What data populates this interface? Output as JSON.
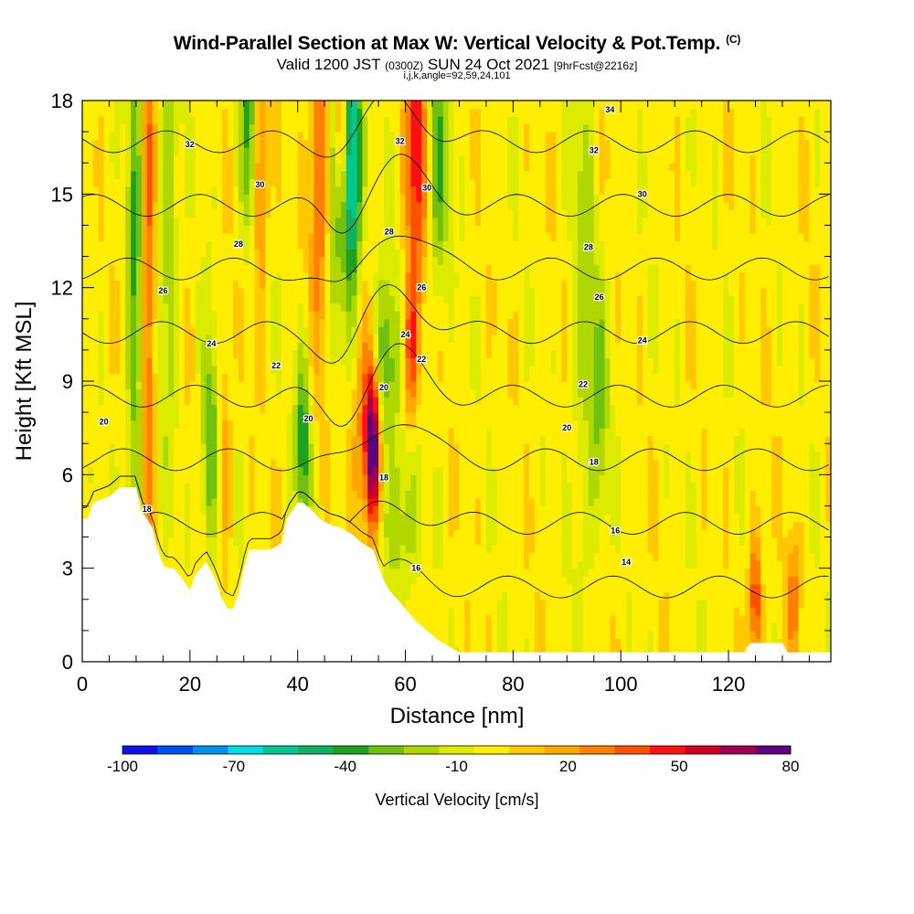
{
  "header": {
    "title": "Wind-Parallel Section at Max W: Vertical Velocity & Pot.Temp.",
    "title_unit": "(C)",
    "valid_prefix": "Valid 1200 JST",
    "valid_utc": "(0300Z)",
    "valid_date": "SUN 24 Oct 2021",
    "forecast": "[9hrFcst@2216z]",
    "indices": "i,j,k,angle=92,59,24,101"
  },
  "chart_data": {
    "type": "heatmap",
    "xlabel": "Distance [nm]",
    "ylabel": "Height [Kft MSL]",
    "xlim": [
      0,
      139
    ],
    "ylim": [
      0,
      18
    ],
    "x_ticks": [
      0,
      20,
      40,
      60,
      80,
      100,
      120
    ],
    "y_ticks": [
      0,
      3,
      6,
      9,
      12,
      15,
      18
    ],
    "colorbar": {
      "label": "Vertical Velocity [cm/s]",
      "tick_labels": [
        "-100",
        "-70",
        "-40",
        "-10",
        "20",
        "50",
        "80"
      ],
      "tick_values": [
        -100,
        -70,
        -40,
        -10,
        20,
        50,
        80
      ],
      "bins": [
        -100,
        -90,
        -80,
        -70,
        -60,
        -50,
        -40,
        -30,
        -20,
        -10,
        0,
        10,
        20,
        30,
        40,
        50,
        60,
        70,
        80
      ],
      "colors": [
        "#1010e8",
        "#0050f0",
        "#0090f0",
        "#00dce8",
        "#00c890",
        "#10b060",
        "#20a020",
        "#70c010",
        "#b0d800",
        "#dceb00",
        "#ffee00",
        "#ffc800",
        "#ffa800",
        "#ff8000",
        "#ff5000",
        "#ff1010",
        "#d00020",
        "#a00050",
        "#600080"
      ]
    },
    "background_value": 5,
    "velocity_features": [
      {
        "x": 10,
        "z": 12,
        "value": -40,
        "sx": 1.2,
        "sz": 7
      },
      {
        "x": 12,
        "z": 12,
        "value": 45,
        "sx": 1.0,
        "sz": 8
      },
      {
        "x": 16,
        "z": 14,
        "value": -25,
        "sx": 1.2,
        "sz": 5
      },
      {
        "x": 24,
        "z": 7,
        "value": -40,
        "sx": 1.3,
        "sz": 2.5
      },
      {
        "x": 26,
        "z": 7,
        "value": 30,
        "sx": 1.0,
        "sz": 2.5
      },
      {
        "x": 31,
        "z": 17,
        "value": -40,
        "sx": 1.2,
        "sz": 2.5
      },
      {
        "x": 33,
        "z": 16,
        "value": 40,
        "sx": 1.0,
        "sz": 3
      },
      {
        "x": 41,
        "z": 7,
        "value": -45,
        "sx": 1.0,
        "sz": 2
      },
      {
        "x": 44,
        "z": 16,
        "value": 40,
        "sx": 1.2,
        "sz": 4
      },
      {
        "x": 47,
        "z": 16,
        "value": -35,
        "sx": 1.0,
        "sz": 3.5
      },
      {
        "x": 50,
        "z": 16,
        "value": -80,
        "sx": 1.3,
        "sz": 3
      },
      {
        "x": 48,
        "z": 17,
        "value": 55,
        "sx": 0.9,
        "sz": 2
      },
      {
        "x": 54,
        "z": 7,
        "value": 70,
        "sx": 0.9,
        "sz": 1.8
      },
      {
        "x": 53,
        "z": 7.5,
        "value": 40,
        "sx": 2.0,
        "sz": 2.5
      },
      {
        "x": 56,
        "z": 9.5,
        "value": -45,
        "sx": 1.8,
        "sz": 2
      },
      {
        "x": 59,
        "z": 4.5,
        "value": -25,
        "sx": 2.5,
        "sz": 2
      },
      {
        "x": 62,
        "z": 16.5,
        "value": 55,
        "sx": 1.4,
        "sz": 3
      },
      {
        "x": 61,
        "z": 10,
        "value": 45,
        "sx": 1.0,
        "sz": 1.8
      },
      {
        "x": 66,
        "z": 16,
        "value": -35,
        "sx": 1.4,
        "sz": 3
      },
      {
        "x": 93,
        "z": 12,
        "value": -20,
        "sx": 1.5,
        "sz": 6
      },
      {
        "x": 96,
        "z": 8,
        "value": -25,
        "sx": 1.2,
        "sz": 3
      },
      {
        "x": 125,
        "z": 2,
        "value": 50,
        "sx": 0.8,
        "sz": 1.5
      },
      {
        "x": 132,
        "z": 2,
        "value": 30,
        "sx": 0.8,
        "sz": 1.5
      }
    ],
    "terrain_top_kft": [
      [
        0,
        4.6
      ],
      [
        1,
        4.6
      ],
      [
        2,
        5.1
      ],
      [
        5,
        5.3
      ],
      [
        7,
        5.6
      ],
      [
        10,
        5.6
      ],
      [
        11,
        4.8
      ],
      [
        12,
        4.6
      ],
      [
        13,
        4.3
      ],
      [
        14,
        3.6
      ],
      [
        15,
        3.1
      ],
      [
        16,
        3.0
      ],
      [
        17,
        3.0
      ],
      [
        18,
        2.8
      ],
      [
        20,
        2.3
      ],
      [
        21,
        2.8
      ],
      [
        22,
        3.0
      ],
      [
        23,
        3.2
      ],
      [
        24,
        2.9
      ],
      [
        25,
        2.5
      ],
      [
        26,
        2.0
      ],
      [
        27,
        1.7
      ],
      [
        28,
        1.7
      ],
      [
        29,
        2.2
      ],
      [
        30,
        3.0
      ],
      [
        31,
        3.6
      ],
      [
        33,
        3.6
      ],
      [
        35,
        3.6
      ],
      [
        37,
        3.8
      ],
      [
        38,
        4.6
      ],
      [
        40,
        5.1
      ],
      [
        41,
        5.1
      ],
      [
        43,
        4.8
      ],
      [
        44,
        4.6
      ],
      [
        46,
        4.4
      ],
      [
        48,
        4.3
      ],
      [
        50,
        4.1
      ],
      [
        52,
        3.8
      ],
      [
        54,
        3.6
      ],
      [
        55,
        3.1
      ],
      [
        56,
        2.6
      ],
      [
        57,
        2.3
      ],
      [
        58,
        2.1
      ],
      [
        60,
        1.7
      ],
      [
        62,
        1.3
      ],
      [
        64,
        1.0
      ],
      [
        66,
        0.7
      ],
      [
        68,
        0.5
      ],
      [
        70,
        0.3
      ],
      [
        80,
        0.3
      ],
      [
        110,
        0.3
      ],
      [
        123,
        0.3
      ],
      [
        124,
        0.6
      ],
      [
        130,
        0.6
      ],
      [
        131,
        0.3
      ],
      [
        139,
        0.3
      ]
    ],
    "contour_levels": [
      14,
      16,
      18,
      20,
      22,
      24,
      26,
      28,
      30,
      32,
      34
    ],
    "contour_labels": [
      {
        "text": "32",
        "x": 20,
        "z": 16.6
      },
      {
        "text": "30",
        "x": 33,
        "z": 15.3
      },
      {
        "text": "28",
        "x": 29,
        "z": 13.4
      },
      {
        "text": "26",
        "x": 15,
        "z": 11.9
      },
      {
        "text": "24",
        "x": 24,
        "z": 10.2
      },
      {
        "text": "22",
        "x": 36,
        "z": 9.5
      },
      {
        "text": "20",
        "x": 4,
        "z": 7.7
      },
      {
        "text": "20",
        "x": 42,
        "z": 7.8
      },
      {
        "text": "18",
        "x": 12,
        "z": 4.9
      },
      {
        "text": "34",
        "x": 98,
        "z": 17.7
      },
      {
        "text": "32",
        "x": 95,
        "z": 16.4
      },
      {
        "text": "30",
        "x": 104,
        "z": 15.0
      },
      {
        "text": "28",
        "x": 94,
        "z": 13.3
      },
      {
        "text": "26",
        "x": 96,
        "z": 11.7
      },
      {
        "text": "24",
        "x": 104,
        "z": 10.3
      },
      {
        "text": "22",
        "x": 93,
        "z": 8.9
      },
      {
        "text": "20",
        "x": 90,
        "z": 7.5
      },
      {
        "text": "18",
        "x": 95,
        "z": 6.4
      },
      {
        "text": "16",
        "x": 99,
        "z": 4.2
      },
      {
        "text": "14",
        "x": 101,
        "z": 3.2
      },
      {
        "text": "32",
        "x": 59,
        "z": 16.7
      },
      {
        "text": "30",
        "x": 64,
        "z": 15.2
      },
      {
        "text": "28",
        "x": 57,
        "z": 13.8
      },
      {
        "text": "26",
        "x": 63,
        "z": 12.0
      },
      {
        "text": "24",
        "x": 60,
        "z": 10.5
      },
      {
        "text": "22",
        "x": 63,
        "z": 9.7
      },
      {
        "text": "20",
        "x": 56,
        "z": 8.8
      },
      {
        "text": "18",
        "x": 56,
        "z": 5.9
      },
      {
        "text": "16",
        "x": 62,
        "z": 3.0
      }
    ]
  }
}
